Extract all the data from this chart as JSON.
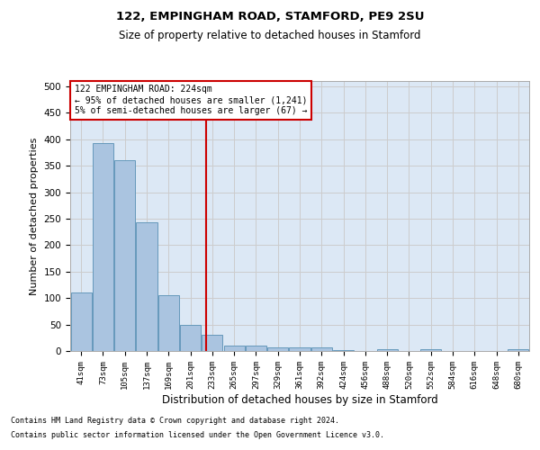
{
  "title1": "122, EMPINGHAM ROAD, STAMFORD, PE9 2SU",
  "title2": "Size of property relative to detached houses in Stamford",
  "xlabel": "Distribution of detached houses by size in Stamford",
  "ylabel": "Number of detached properties",
  "bin_labels": [
    "41sqm",
    "73sqm",
    "105sqm",
    "137sqm",
    "169sqm",
    "201sqm",
    "233sqm",
    "265sqm",
    "297sqm",
    "329sqm",
    "361sqm",
    "392sqm",
    "424sqm",
    "456sqm",
    "488sqm",
    "520sqm",
    "552sqm",
    "584sqm",
    "616sqm",
    "648sqm",
    "680sqm"
  ],
  "bar_values": [
    110,
    393,
    360,
    243,
    105,
    50,
    30,
    10,
    10,
    6,
    6,
    6,
    2,
    0,
    4,
    0,
    4,
    0,
    0,
    0,
    4
  ],
  "bar_color": "#aac4e0",
  "bar_edge_color": "#6699bb",
  "grid_color": "#cccccc",
  "bg_color": "#dce8f5",
  "vline_x": 5.73,
  "vline_color": "#cc0000",
  "annotation_text": "122 EMPINGHAM ROAD: 224sqm\n← 95% of detached houses are smaller (1,241)\n5% of semi-detached houses are larger (67) →",
  "annotation_box_color": "#cc0000",
  "footnote1": "Contains HM Land Registry data © Crown copyright and database right 2024.",
  "footnote2": "Contains public sector information licensed under the Open Government Licence v3.0.",
  "ylim": [
    0,
    510
  ],
  "yticks": [
    0,
    50,
    100,
    150,
    200,
    250,
    300,
    350,
    400,
    450,
    500
  ]
}
